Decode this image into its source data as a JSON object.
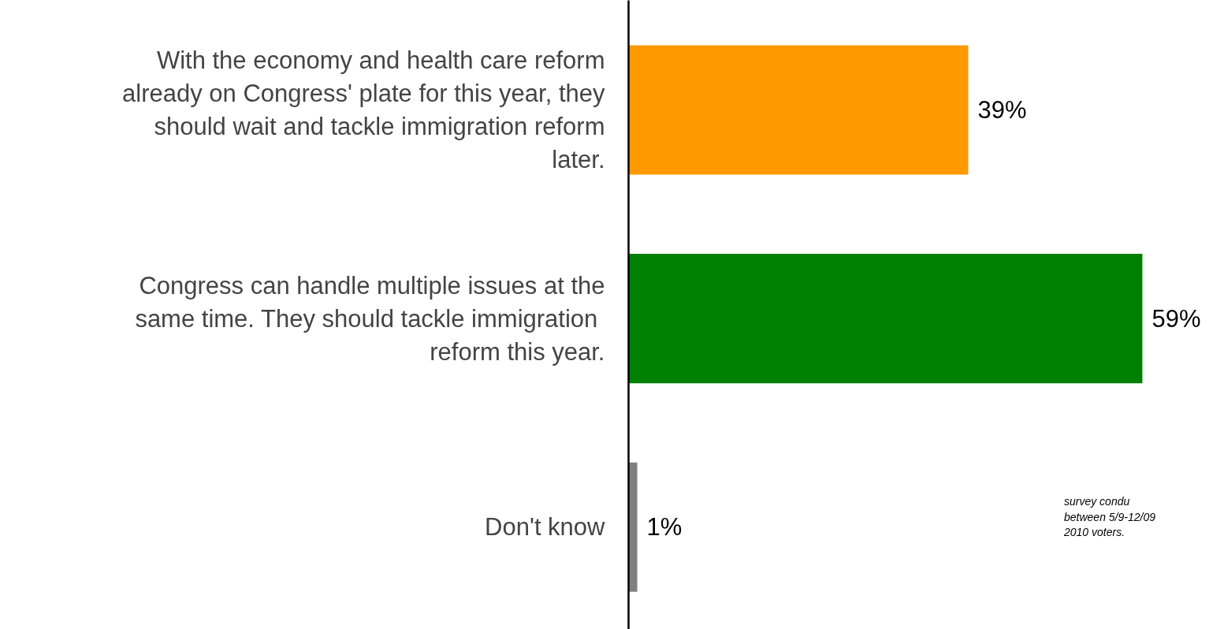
{
  "chart_data": {
    "type": "bar",
    "orientation": "horizontal",
    "categories": [
      "With the economy and health care reform already on Congress' plate for this year, they should wait and tackle immigration reform later.",
      "Congress can handle multiple issues at the same time.  They should tackle immigration reform this year.",
      "Don't know"
    ],
    "values": [
      39,
      59,
      1
    ],
    "colors": [
      "#ff9900",
      "#008000",
      "#808080"
    ],
    "value_labels": [
      "39%",
      "59%",
      "1%"
    ],
    "annotations": [
      "survey condu between 5/9-12/09 2010 voters."
    ]
  }
}
